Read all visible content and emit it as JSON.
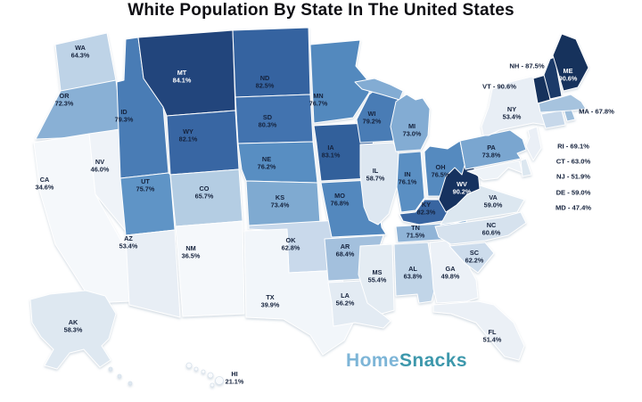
{
  "title": "White Population By State In The United States",
  "logo": {
    "part1": "Home",
    "part2": "Snacks",
    "color1": "#7db5d7",
    "color2": "#3d98ac"
  },
  "chart_data": {
    "type": "choropleth-map",
    "region": "United States",
    "title": "White Population By State In The United States",
    "unit": "percent",
    "legend_position": "none",
    "colors": {
      "dark_text": "#15223c",
      "light_text": "#ffffff",
      "white_label_threshold": 84,
      "scale_stops": [
        [
          21,
          "#f9fbfd"
        ],
        [
          36,
          "#f5f8fb"
        ],
        [
          40,
          "#f2f6fa"
        ],
        [
          47,
          "#eef3f8"
        ],
        [
          51,
          "#ebf0f6"
        ],
        [
          53.5,
          "#e8eef5"
        ],
        [
          56,
          "#e3ebf3"
        ],
        [
          58.5,
          "#dee8f1"
        ],
        [
          60,
          "#d9e4ef"
        ],
        [
          62,
          "#cfdded"
        ],
        [
          63.5,
          "#c3d6e9"
        ],
        [
          65,
          "#b9d0e5"
        ],
        [
          67,
          "#abc6e0"
        ],
        [
          69,
          "#9fbedb"
        ],
        [
          71.5,
          "#90b4d7"
        ],
        [
          73.5,
          "#7ea9d1"
        ],
        [
          75.5,
          "#6296c8"
        ],
        [
          76.5,
          "#548abf"
        ],
        [
          78,
          "#4e82bb"
        ],
        [
          79.5,
          "#477ab4"
        ],
        [
          81,
          "#3d6dab"
        ],
        [
          83,
          "#34619c"
        ],
        [
          83.9,
          "#2f5a90"
        ],
        [
          84.1,
          "#20447c"
        ],
        [
          86,
          "#1d3f70"
        ],
        [
          88,
          "#1a3a66"
        ],
        [
          90.6,
          "#16325c"
        ]
      ]
    },
    "states": [
      {
        "abbr": "WA",
        "value": 64.3,
        "label": "64.3%"
      },
      {
        "abbr": "OR",
        "value": 72.3,
        "label": "72.3%"
      },
      {
        "abbr": "CA",
        "value": 34.6,
        "label": "34.6%"
      },
      {
        "abbr": "NV",
        "value": 46.0,
        "label": "46.0%"
      },
      {
        "abbr": "ID",
        "value": 79.3,
        "label": "79.3%"
      },
      {
        "abbr": "MT",
        "value": 84.1,
        "label": "84.1%"
      },
      {
        "abbr": "WY",
        "value": 82.1,
        "label": "82.1%"
      },
      {
        "abbr": "UT",
        "value": 75.7,
        "label": "75.7%"
      },
      {
        "abbr": "CO",
        "value": 65.7,
        "label": "65.7%"
      },
      {
        "abbr": "AZ",
        "value": 53.4,
        "label": "53.4%"
      },
      {
        "abbr": "NM",
        "value": 36.5,
        "label": "36.5%"
      },
      {
        "abbr": "ND",
        "value": 82.5,
        "label": "82.5%"
      },
      {
        "abbr": "SD",
        "value": 80.3,
        "label": "80.3%"
      },
      {
        "abbr": "NE",
        "value": 76.2,
        "label": "76.2%"
      },
      {
        "abbr": "KS",
        "value": 73.4,
        "label": "73.4%"
      },
      {
        "abbr": "OK",
        "value": 62.8,
        "label": "62.8%"
      },
      {
        "abbr": "TX",
        "value": 39.9,
        "label": "39.9%"
      },
      {
        "abbr": "MN",
        "value": 76.7,
        "label": "76.7%"
      },
      {
        "abbr": "IA",
        "value": 83.1,
        "label": "83.1%"
      },
      {
        "abbr": "MO",
        "value": 76.8,
        "label": "76.8%"
      },
      {
        "abbr": "AR",
        "value": 68.4,
        "label": "68.4%"
      },
      {
        "abbr": "LA",
        "value": 56.2,
        "label": "56.2%"
      },
      {
        "abbr": "WI",
        "value": 79.2,
        "label": "79.2%"
      },
      {
        "abbr": "IL",
        "value": 58.7,
        "label": "58.7%"
      },
      {
        "abbr": "MI",
        "value": 73.0,
        "label": "73.0%"
      },
      {
        "abbr": "IN",
        "value": 76.1,
        "label": "76.1%"
      },
      {
        "abbr": "OH",
        "value": 76.5,
        "label": "76.5%"
      },
      {
        "abbr": "KY",
        "value": 82.3,
        "label": "82.3%"
      },
      {
        "abbr": "TN",
        "value": 71.5,
        "label": "71.5%"
      },
      {
        "abbr": "MS",
        "value": 55.4,
        "label": "55.4%"
      },
      {
        "abbr": "AL",
        "value": 63.8,
        "label": "63.8%"
      },
      {
        "abbr": "GA",
        "value": 49.8,
        "label": "49.8%"
      },
      {
        "abbr": "FL",
        "value": 51.4,
        "label": "51.4%"
      },
      {
        "abbr": "NC",
        "value": 60.6,
        "label": "60.6%"
      },
      {
        "abbr": "SC",
        "value": 62.2,
        "label": "62.2%"
      },
      {
        "abbr": "VA",
        "value": 59.0,
        "label": "59.0%"
      },
      {
        "abbr": "WV",
        "value": 90.2,
        "label": "90.2%"
      },
      {
        "abbr": "PA",
        "value": 73.8,
        "label": "73.8%"
      },
      {
        "abbr": "NY",
        "value": 53.4,
        "label": "53.4%"
      },
      {
        "abbr": "MD",
        "value": 47.4,
        "label": "47.4%"
      },
      {
        "abbr": "DE",
        "value": 59.0,
        "label": "59.0%"
      },
      {
        "abbr": "NJ",
        "value": 51.9,
        "label": "51.9%"
      },
      {
        "abbr": "CT",
        "value": 63.0,
        "label": "63.0%"
      },
      {
        "abbr": "RI",
        "value": 69.1,
        "label": "69.1%"
      },
      {
        "abbr": "MA",
        "value": 67.8,
        "label": "67.8%"
      },
      {
        "abbr": "VT",
        "value": 90.6,
        "label": "90.6%"
      },
      {
        "abbr": "NH",
        "value": 87.5,
        "label": "87.5%"
      },
      {
        "abbr": "ME",
        "value": 90.6,
        "label": "90.6%"
      },
      {
        "abbr": "AK",
        "value": 58.3,
        "label": "58.3%"
      },
      {
        "abbr": "HI",
        "value": 21.1,
        "label": "21.1%"
      }
    ],
    "side_labels": [
      {
        "abbr": "NH",
        "text": "NH - 87.5%"
      },
      {
        "abbr": "VT",
        "text": "VT - 90.6%"
      },
      {
        "abbr": "MA",
        "text": "MA - 67.8%"
      },
      {
        "abbr": "RI",
        "text": "RI - 69.1%"
      },
      {
        "abbr": "CT",
        "text": "CT - 63.0%"
      },
      {
        "abbr": "NJ",
        "text": "NJ - 51.9%"
      },
      {
        "abbr": "DE",
        "text": "DE - 59.0%"
      },
      {
        "abbr": "MD",
        "text": "MD - 47.4%"
      }
    ]
  }
}
